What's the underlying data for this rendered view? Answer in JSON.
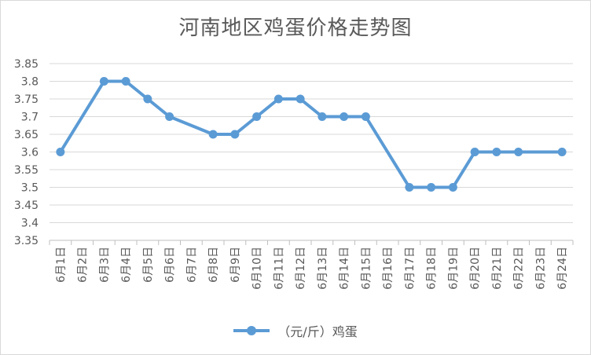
{
  "chart_data": {
    "type": "line",
    "title": "河南地区鸡蛋价格走势图",
    "xlabel": "",
    "ylabel": "",
    "categories": [
      "6月1日",
      "6月2日",
      "6月3日",
      "6月4日",
      "6月5日",
      "6月6日",
      "6月7日",
      "6月8日",
      "6月9日",
      "6月10日",
      "6月11日",
      "6月12日",
      "6月13日",
      "6月14日",
      "6月15日",
      "6月16日",
      "6月17日",
      "6月18日",
      "6月19日",
      "6月20日",
      "6月21日",
      "6月22日",
      "6月23日",
      "6月24日"
    ],
    "series": [
      {
        "name": "（元/斤）鸡蛋",
        "color": "#5b9bd5",
        "values": [
          3.6,
          null,
          3.8,
          3.8,
          3.75,
          3.7,
          null,
          3.65,
          3.65,
          3.7,
          3.75,
          3.75,
          3.7,
          3.7,
          3.7,
          null,
          3.5,
          3.5,
          3.5,
          3.6,
          3.6,
          3.6,
          null,
          3.6
        ]
      }
    ],
    "ylim": [
      3.35,
      3.85
    ],
    "yticks": [
      "3.35",
      "3.4",
      "3.45",
      "3.5",
      "3.55",
      "3.6",
      "3.65",
      "3.7",
      "3.75",
      "3.8",
      "3.85"
    ],
    "grid": true,
    "legend_position": "bottom",
    "connect_gaps": true
  }
}
